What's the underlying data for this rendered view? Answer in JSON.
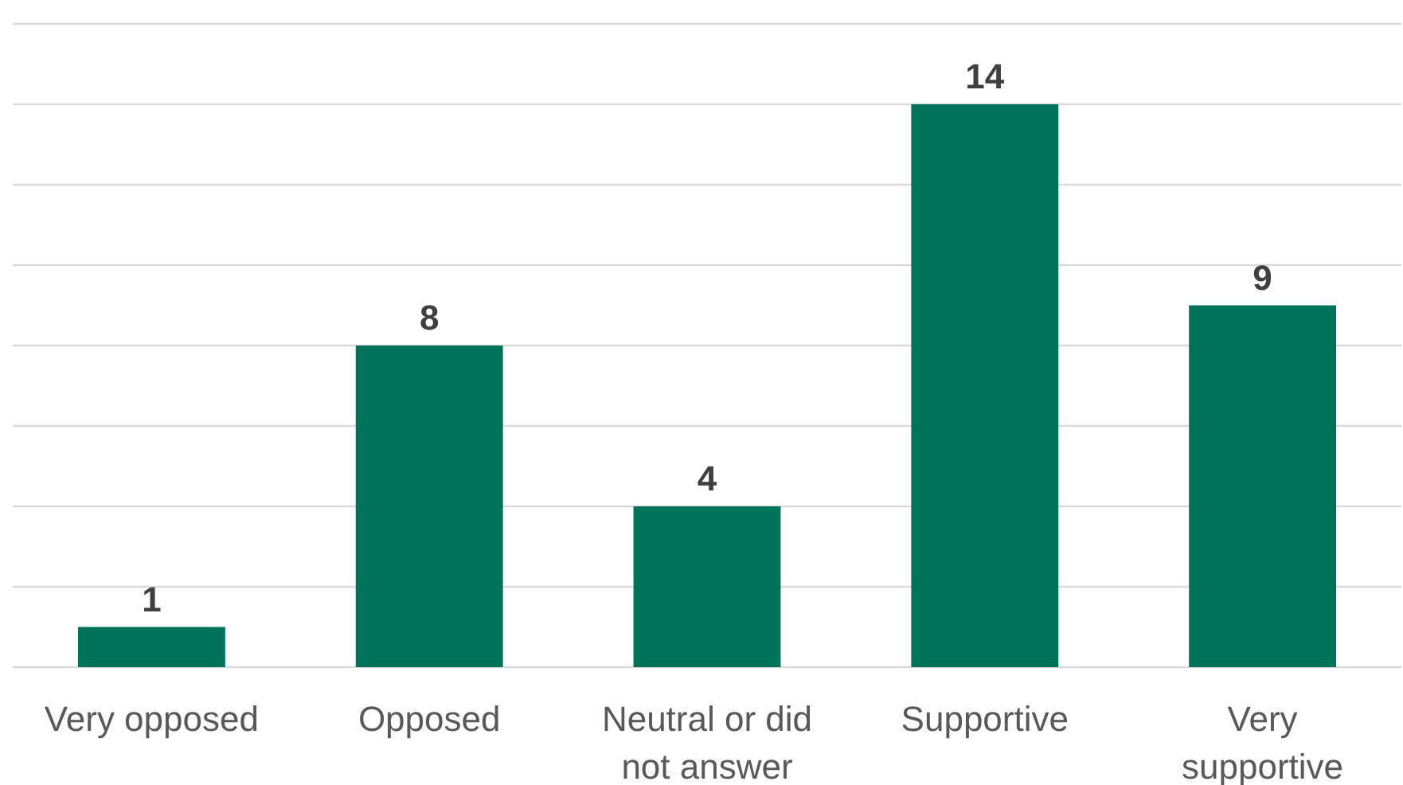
{
  "chart_data": {
    "type": "bar",
    "categories": [
      "Very opposed",
      "Opposed",
      "Neutral or did not answer",
      "Supportive",
      "Very supportive"
    ],
    "values": [
      1,
      8,
      4,
      14,
      9
    ],
    "color": "#00735a",
    "ylim": [
      0,
      16
    ],
    "yticks": [
      {
        "value": 0,
        "label": null
      },
      {
        "value": 2,
        "label": null
      },
      {
        "value": 4,
        "label": null
      },
      {
        "value": 6,
        "label": null
      },
      {
        "value": 8,
        "label": null
      },
      {
        "value": 10,
        "label": null
      },
      {
        "value": 12,
        "label": null
      },
      {
        "value": 14,
        "label": null
      },
      {
        "value": 16,
        "label": null
      }
    ],
    "grid": "y",
    "tick_labels": "x",
    "data_labels": true
  }
}
